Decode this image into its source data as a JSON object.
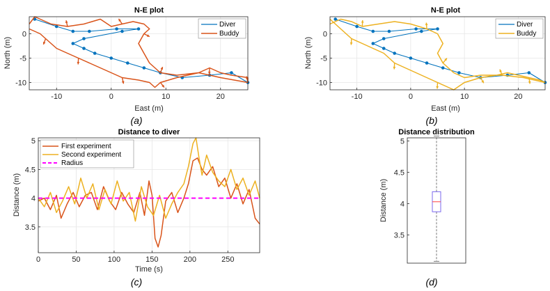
{
  "chart_data": [
    {
      "id": "a",
      "type": "line",
      "title": "N-E plot",
      "xlabel": "East (m)",
      "ylabel": "North (m)",
      "xlim": [
        -15,
        25
      ],
      "ylim": [
        -11.5,
        3.5
      ],
      "xticks": [
        -10,
        0,
        10,
        20
      ],
      "yticks": [
        -10,
        -5,
        0
      ],
      "grid": true,
      "legend_position": "top-right",
      "caption": "(a)",
      "series": [
        {
          "name": "Diver",
          "color": "#0072BD",
          "marker": "circle",
          "x": [
            -14,
            -10,
            -7,
            -4,
            1,
            5,
            2,
            -5,
            -7,
            -5,
            -3,
            0,
            3,
            6,
            9,
            13,
            18,
            22,
            25
          ],
          "y": [
            3,
            1.5,
            0.5,
            0.5,
            1,
            1,
            0.5,
            -1,
            -2,
            -3,
            -4,
            -5,
            -6,
            -7,
            -8,
            -9,
            -8.5,
            -8,
            -10
          ]
        },
        {
          "name": "Buddy",
          "color": "#D95319",
          "marker": "arrow",
          "x": [
            -15,
            -13,
            -12,
            -11,
            -10,
            -8,
            -6,
            -4,
            -2,
            0,
            2,
            5,
            7,
            8,
            9,
            12,
            14,
            16,
            18,
            20,
            22,
            25,
            25,
            20,
            16,
            12,
            9,
            7,
            6,
            5,
            6,
            7,
            6,
            4,
            2,
            0,
            -2,
            -5,
            -8,
            -11,
            -13,
            -14,
            -15
          ],
          "y": [
            1,
            0,
            -1,
            -2,
            -3,
            -4,
            -5,
            -6,
            -7,
            -8,
            -9,
            -9.5,
            -10,
            -11,
            -10,
            -9,
            -8.5,
            -8,
            -7,
            -8,
            -8.5,
            -9,
            -10,
            -9,
            -8,
            -8.5,
            -8,
            -6,
            -4,
            -2,
            0,
            1,
            2,
            2.5,
            2,
            1.5,
            3,
            2,
            1.5,
            2,
            3,
            3.5,
            2
          ]
        }
      ]
    },
    {
      "id": "b",
      "type": "line",
      "title": "N-E plot",
      "xlabel": "East (m)",
      "ylabel": "North (m)",
      "xlim": [
        -15,
        25
      ],
      "ylim": [
        -11.5,
        3.5
      ],
      "xticks": [
        -10,
        0,
        10,
        20
      ],
      "yticks": [
        -10,
        -5,
        0
      ],
      "grid": true,
      "legend_position": "top-right",
      "caption": "(b)",
      "series": [
        {
          "name": "Diver",
          "color": "#0072BD",
          "marker": "circle",
          "x": [
            -14,
            -10,
            -7,
            -4,
            1,
            5,
            2,
            -5,
            -7,
            -5,
            -3,
            0,
            3,
            6,
            9,
            13,
            18,
            22,
            25
          ],
          "y": [
            3,
            1.5,
            0.5,
            0.5,
            1,
            1,
            0.5,
            -1,
            -2,
            -3,
            -4,
            -5,
            -6,
            -7,
            -8,
            -9,
            -8.5,
            -8,
            -10
          ]
        },
        {
          "name": "Buddy",
          "color": "#EDB120",
          "marker": "arrow",
          "x": [
            -15,
            -13,
            -11,
            -9,
            -7,
            -5,
            -3,
            -1,
            1,
            3,
            5,
            7,
            8,
            10,
            13,
            16,
            18,
            20,
            22,
            24,
            25,
            21,
            17,
            13,
            10,
            8,
            6,
            5,
            6,
            5,
            3,
            0,
            -3,
            -6,
            -9,
            -11,
            -13,
            -14,
            -15
          ],
          "y": [
            3,
            1,
            -1,
            -2,
            -3,
            -4,
            -6,
            -7,
            -8,
            -9,
            -10,
            -11,
            -11.5,
            -10,
            -9,
            -8.5,
            -8,
            -8.5,
            -9,
            -9.5,
            -10,
            -9,
            -8.5,
            -8.5,
            -9,
            -8,
            -6,
            -4,
            -2,
            0,
            1,
            2,
            2.5,
            2,
            1.5,
            2.5,
            3,
            2.5,
            2
          ]
        }
      ]
    },
    {
      "id": "c",
      "type": "line",
      "title": "Distance to diver",
      "xlabel": "Time (s)",
      "ylabel": "Distance (m)",
      "xlim": [
        0,
        292
      ],
      "ylim": [
        3.05,
        5.05
      ],
      "xticks": [
        0,
        50,
        100,
        150,
        200,
        250
      ],
      "yticks": [
        3.5,
        4,
        4.5,
        5
      ],
      "grid": true,
      "legend_position": "top-left",
      "caption": "(c)",
      "series": [
        {
          "name": "First experiment",
          "color": "#D95319",
          "x": [
            0,
            8,
            16,
            24,
            30,
            38,
            46,
            54,
            62,
            70,
            78,
            86,
            94,
            102,
            110,
            118,
            126,
            134,
            140,
            146,
            150,
            154,
            158,
            162,
            168,
            176,
            184,
            192,
            198,
            204,
            210,
            216,
            222,
            230,
            238,
            246,
            254,
            262,
            270,
            278,
            286,
            292
          ],
          "y": [
            3.95,
            4.0,
            3.8,
            4.05,
            3.65,
            3.9,
            4.1,
            3.85,
            4.05,
            4.1,
            3.8,
            4.2,
            3.95,
            3.8,
            4.1,
            3.9,
            3.75,
            4.1,
            3.7,
            4.3,
            4.05,
            3.3,
            3.15,
            3.35,
            3.95,
            4.1,
            3.75,
            4.0,
            4.25,
            4.65,
            4.7,
            4.5,
            4.4,
            4.55,
            4.2,
            4.35,
            4.0,
            4.25,
            3.9,
            4.15,
            3.65,
            3.55
          ]
        },
        {
          "name": "Second experiment",
          "color": "#EDB120",
          "x": [
            0,
            8,
            16,
            24,
            32,
            40,
            48,
            56,
            64,
            72,
            80,
            88,
            96,
            104,
            112,
            120,
            128,
            136,
            144,
            152,
            160,
            168,
            176,
            184,
            192,
            198,
            204,
            208,
            212,
            216,
            222,
            230,
            238,
            246,
            254,
            262,
            270,
            278,
            286,
            292
          ],
          "y": [
            4.0,
            3.85,
            4.1,
            3.75,
            3.95,
            4.2,
            3.9,
            4.35,
            4.0,
            4.25,
            3.8,
            4.15,
            3.9,
            4.3,
            3.95,
            4.1,
            3.6,
            4.2,
            3.85,
            3.7,
            4.05,
            3.65,
            3.9,
            4.1,
            4.25,
            4.55,
            4.95,
            5.05,
            4.7,
            4.4,
            4.75,
            4.45,
            4.3,
            4.2,
            4.5,
            4.15,
            4.35,
            4.05,
            4.3,
            4.0
          ]
        },
        {
          "name": "Radius",
          "color": "#FF00FF",
          "style": "dashed",
          "x": [
            0,
            292
          ],
          "y": [
            4,
            4
          ]
        }
      ]
    },
    {
      "id": "d",
      "type": "box",
      "title": "Distance distribution",
      "ylabel": "Distance (m)",
      "ylim": [
        3.05,
        5.05
      ],
      "yticks": [
        3.5,
        4,
        4.5,
        5
      ],
      "grid": false,
      "caption": "(d)",
      "box": {
        "min": 3.08,
        "q1": 3.87,
        "median": 4.03,
        "q3": 4.19,
        "max": 5.08,
        "box_color": "#7B68EE",
        "median_color": "#FF4040",
        "whisker_color": "#555555"
      }
    }
  ]
}
